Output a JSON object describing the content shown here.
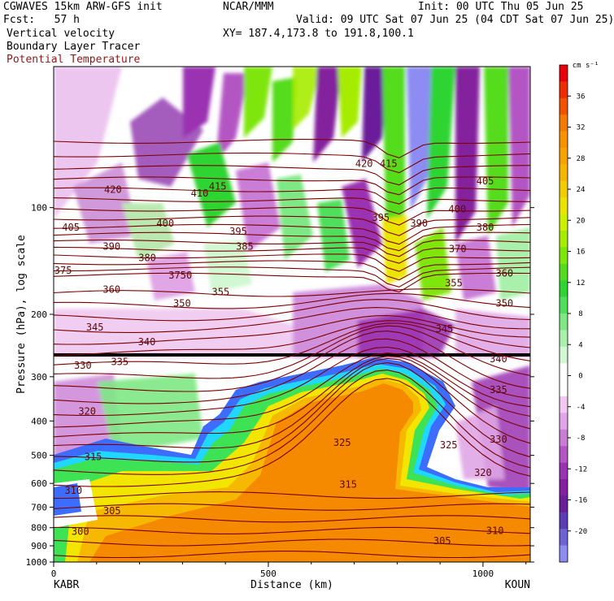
{
  "header": {
    "model": "CGWAVES 15km ARW-GFS init",
    "fcst": "Fcst:   57 h",
    "center": "NCAR/MMM",
    "init": "Init: 00 UTC Thu 05 Jun 25",
    "valid": "Valid: 09 UTC Sat 07 Jun 25 (04 CDT Sat 07 Jun 25)",
    "xy": "XY= 187.4,173.8 to 191.8,100.1",
    "fields": [
      "Vertical velocity",
      "Boundary Layer Tracer",
      "Potential Temperature"
    ],
    "field_colors": [
      "#000000",
      "#000000",
      "#8b1a1a"
    ]
  },
  "chart_data": {
    "type": "heatmap",
    "title": "Vertical velocity / Boundary Layer Tracer / Potential Temperature",
    "xlabel": "Distance (km)",
    "ylabel": "Pressure (hPa), log scale",
    "xlim": [
      0,
      1110
    ],
    "ylim": [
      1000,
      40
    ],
    "y_scale": "log",
    "x_ticks": [
      "0",
      "500",
      "1000"
    ],
    "x_tick_values": [
      0,
      500,
      1000
    ],
    "y_ticks": [
      "100",
      "200",
      "300",
      "400",
      "500",
      "600",
      "700",
      "800",
      "900",
      "1000"
    ],
    "y_tick_values": [
      100,
      200,
      300,
      400,
      500,
      600,
      700,
      800,
      900,
      1000
    ],
    "endpoints": {
      "left": "KABR",
      "right": "KOUN"
    },
    "colorbar": {
      "unit": "cm s⁻¹",
      "labels": [
        "36",
        "32",
        "28",
        "24",
        "20",
        "16",
        "12",
        "8",
        "4",
        "0",
        "-4",
        "-8",
        "-12",
        "-16",
        "-20"
      ],
      "label_values": [
        36,
        32,
        28,
        24,
        20,
        16,
        12,
        8,
        4,
        0,
        -4,
        -8,
        -12,
        -16,
        -20
      ],
      "colors": [
        "#e8000b",
        "#ee2d00",
        "#f25300",
        "#f67a00",
        "#f89300",
        "#f9a300",
        "#f6b600",
        "#f0cc00",
        "#eae400",
        "#ccf000",
        "#a6ec00",
        "#7fe60a",
        "#55dc1e",
        "#2ed432",
        "#4fdf5c",
        "#7ee884",
        "#a8f0ab",
        "#d2f7d3",
        "#ffffff",
        "#ffffff",
        "#f0c8f0",
        "#e0a6e6",
        "#c97dd6",
        "#b356c4",
        "#9a33b2",
        "#84209e",
        "#6a1e9a",
        "#5b3cb4",
        "#6d62d6",
        "#8c8cf2"
      ]
    },
    "theta_labels": [
      {
        "text": "420",
        "x": 138,
        "p": 90
      },
      {
        "text": "410",
        "x": 340,
        "p": 92
      },
      {
        "text": "415",
        "x": 382,
        "p": 88
      },
      {
        "text": "420",
        "x": 723,
        "p": 76
      },
      {
        "text": "415",
        "x": 780,
        "p": 76
      },
      {
        "text": "405",
        "x": 1005,
        "p": 85
      },
      {
        "text": "405",
        "x": 40,
        "p": 115
      },
      {
        "text": "400",
        "x": 260,
        "p": 112
      },
      {
        "text": "395",
        "x": 430,
        "p": 118
      },
      {
        "text": "395",
        "x": 762,
        "p": 108
      },
      {
        "text": "390",
        "x": 851,
        "p": 112
      },
      {
        "text": "400",
        "x": 940,
        "p": 102
      },
      {
        "text": "380",
        "x": 1005,
        "p": 115
      },
      {
        "text": "390",
        "x": 135,
        "p": 130
      },
      {
        "text": "385",
        "x": 445,
        "p": 130
      },
      {
        "text": "380",
        "x": 218,
        "p": 140
      },
      {
        "text": "370",
        "x": 941,
        "p": 132
      },
      {
        "text": "375",
        "x": 22,
        "p": 152
      },
      {
        "text": "3750",
        "x": 295,
        "p": 157
      },
      {
        "text": "360",
        "x": 1050,
        "p": 155
      },
      {
        "text": "360",
        "x": 135,
        "p": 172
      },
      {
        "text": "355",
        "x": 389,
        "p": 175
      },
      {
        "text": "355",
        "x": 932,
        "p": 165
      },
      {
        "text": "350",
        "x": 299,
        "p": 188
      },
      {
        "text": "350",
        "x": 1050,
        "p": 188
      },
      {
        "text": "345",
        "x": 96,
        "p": 220
      },
      {
        "text": "345",
        "x": 910,
        "p": 222
      },
      {
        "text": "340",
        "x": 217,
        "p": 242
      },
      {
        "text": "335",
        "x": 154,
        "p": 275
      },
      {
        "text": "340",
        "x": 1036,
        "p": 270
      },
      {
        "text": "330",
        "x": 68,
        "p": 282
      },
      {
        "text": "335",
        "x": 1036,
        "p": 330
      },
      {
        "text": "320",
        "x": 78,
        "p": 380
      },
      {
        "text": "330",
        "x": 1036,
        "p": 455
      },
      {
        "text": "325",
        "x": 672,
        "p": 465
      },
      {
        "text": "325",
        "x": 920,
        "p": 473
      },
      {
        "text": "315",
        "x": 92,
        "p": 510
      },
      {
        "text": "320",
        "x": 1000,
        "p": 565
      },
      {
        "text": "315",
        "x": 686,
        "p": 610
      },
      {
        "text": "310",
        "x": 46,
        "p": 635
      },
      {
        "text": "305",
        "x": 136,
        "p": 725
      },
      {
        "text": "300",
        "x": 62,
        "p": 830
      },
      {
        "text": "310",
        "x": 1028,
        "p": 825
      },
      {
        "text": "305",
        "x": 905,
        "p": 880
      }
    ]
  }
}
